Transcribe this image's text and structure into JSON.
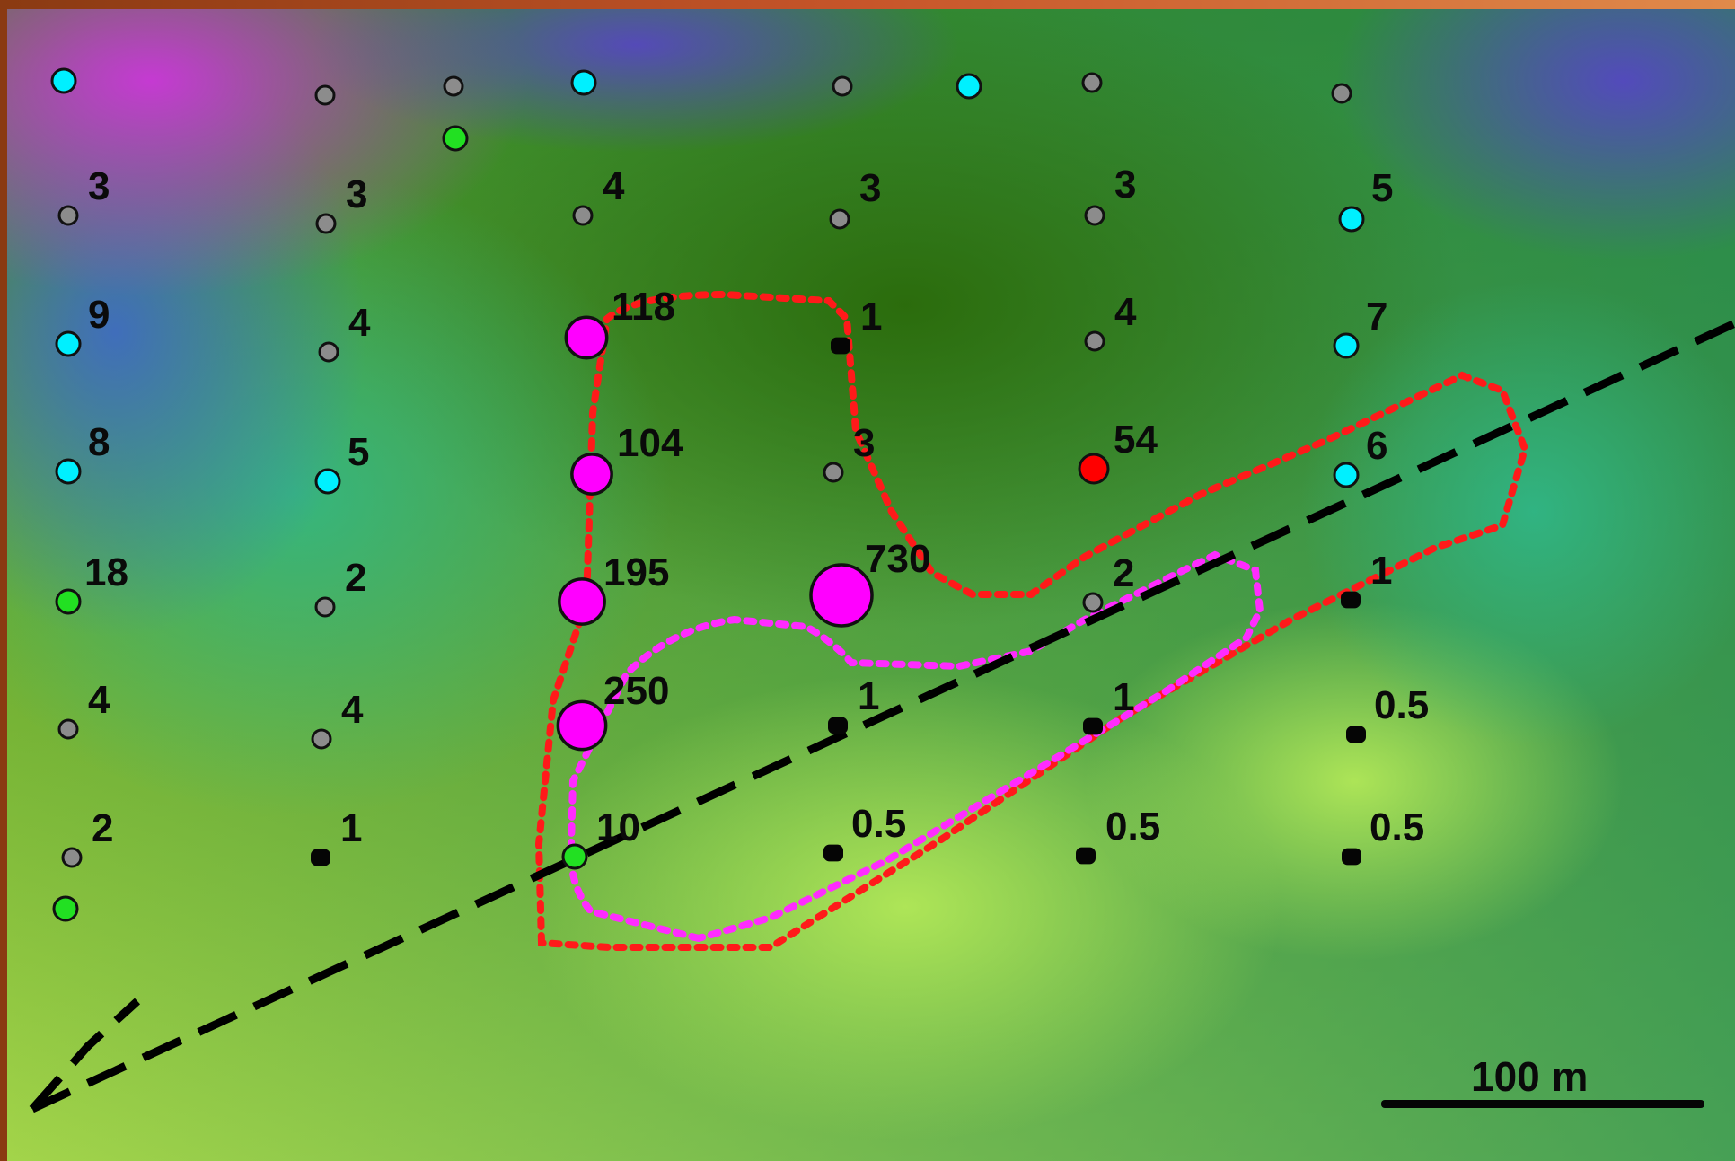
{
  "scale_bar": {
    "label": "100 m"
  },
  "colors": {
    "magenta": "#ff00ff",
    "red": "#ff0000",
    "cyan": "#00f0ff",
    "green": "#22e022",
    "gray": "#8c8c8c",
    "black": "#050505"
  },
  "samples": [
    {
      "color": "cyan"
    },
    {
      "color": "gray"
    },
    {
      "color": "gray"
    },
    {
      "color": "green"
    },
    {
      "color": "cyan"
    },
    {
      "color": "gray"
    },
    {
      "color": "cyan"
    },
    {
      "color": "gray"
    },
    {
      "color": "gray"
    },
    {
      "value": "3",
      "color": "gray"
    },
    {
      "value": "3",
      "color": "gray"
    },
    {
      "value": "4",
      "color": "gray"
    },
    {
      "value": "3",
      "color": "gray"
    },
    {
      "value": "3",
      "color": "gray"
    },
    {
      "value": "5",
      "color": "cyan"
    },
    {
      "value": "9",
      "color": "cyan"
    },
    {
      "value": "4",
      "color": "gray"
    },
    {
      "value": "118",
      "color": "magenta"
    },
    {
      "value": "1",
      "color": "black"
    },
    {
      "value": "4",
      "color": "gray"
    },
    {
      "value": "7",
      "color": "cyan"
    },
    {
      "value": "8",
      "color": "cyan"
    },
    {
      "value": "5",
      "color": "cyan"
    },
    {
      "value": "104",
      "color": "magenta"
    },
    {
      "value": "3",
      "color": "gray"
    },
    {
      "value": "54",
      "color": "red"
    },
    {
      "value": "6",
      "color": "cyan"
    },
    {
      "value": "18",
      "color": "green"
    },
    {
      "value": "2",
      "color": "gray"
    },
    {
      "value": "195",
      "color": "magenta"
    },
    {
      "value": "730",
      "color": "magenta"
    },
    {
      "value": "2",
      "color": "gray"
    },
    {
      "value": "1",
      "color": "black"
    },
    {
      "value": "4",
      "color": "gray"
    },
    {
      "value": "4",
      "color": "gray"
    },
    {
      "value": "250",
      "color": "magenta"
    },
    {
      "value": "1",
      "color": "black"
    },
    {
      "value": "1",
      "color": "black"
    },
    {
      "value": "0.5",
      "color": "black"
    },
    {
      "value": "2",
      "color": "gray"
    },
    {
      "value": "1",
      "color": "black"
    },
    {
      "value": "10",
      "color": "green"
    },
    {
      "value": "0.5",
      "color": "black"
    },
    {
      "value": "0.5",
      "color": "black"
    },
    {
      "value": "0.5",
      "color": "black"
    },
    {
      "color": "green"
    }
  ]
}
